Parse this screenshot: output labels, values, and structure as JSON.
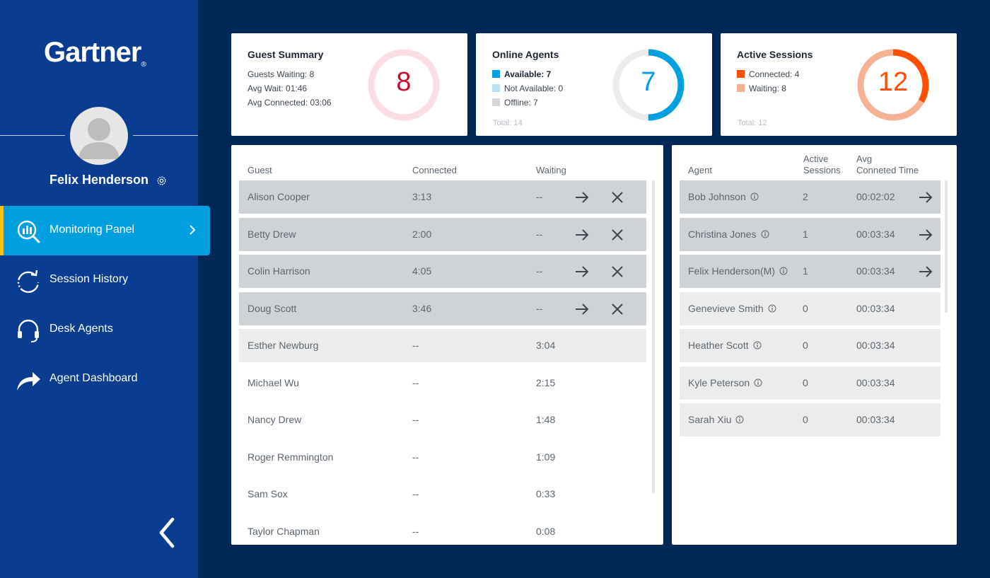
{
  "brand": {
    "logo_text": "Gartner",
    "logo_mark": "®"
  },
  "user": {
    "name": "Felix Henderson"
  },
  "nav": {
    "items": [
      {
        "label": "Monitoring Panel",
        "icon": "monitoring-chart-icon",
        "active": true
      },
      {
        "label": "Session History",
        "icon": "history-refresh-icon"
      },
      {
        "label": "Desk Agents",
        "icon": "headset-icon"
      },
      {
        "label": "Agent Dashboard",
        "icon": "share-arrow-icon"
      }
    ]
  },
  "guest_summary": {
    "title": "Guest Summary",
    "lines": [
      "Guests Waiting: 8",
      "Avg Wait: 01:46",
      "Avg Connected: 03:06"
    ],
    "ring_value": "8",
    "color": "#c8102e"
  },
  "online_agents": {
    "title": "Online Agents",
    "legend": [
      {
        "label": "Available: 7",
        "color": "#009fdf"
      },
      {
        "label": "Not Available: 0",
        "color": "#b9e3f5"
      },
      {
        "label": "Offline: 7",
        "color": "#d6d9dc"
      }
    ],
    "total": "Total: 14",
    "ring_value": "7",
    "available_fraction": 0.5
  },
  "active_sessions": {
    "title": "Active Sessions",
    "legend": [
      {
        "label": "Connected: 4",
        "color": "#fe5000"
      },
      {
        "label": "Waiting: 8",
        "color": "#f5b293"
      }
    ],
    "total": "Total: 12",
    "ring_value": "12",
    "connected_fraction": 0.333
  },
  "guests_table": {
    "headers": {
      "guest": "Guest",
      "connected": "Connected",
      "waiting": "Waiting"
    },
    "rows": [
      {
        "guest": "Alison Cooper",
        "connected": "3:13",
        "waiting": "--",
        "style": "dark",
        "actions": true
      },
      {
        "guest": "Betty Drew",
        "connected": "2:00",
        "waiting": "--",
        "style": "dark",
        "actions": true
      },
      {
        "guest": "Colin Harrison",
        "connected": "4:05",
        "waiting": "--",
        "style": "dark",
        "actions": true
      },
      {
        "guest": "Doug Scott",
        "connected": "3:46",
        "waiting": "--",
        "style": "dark",
        "actions": true
      },
      {
        "guest": "Esther Newburg",
        "connected": "--",
        "waiting": "3:04",
        "style": "light",
        "actions": false
      },
      {
        "guest": "Michael Wu",
        "connected": "--",
        "waiting": "2:15",
        "style": "none",
        "actions": false
      },
      {
        "guest": "Nancy Drew",
        "connected": "--",
        "waiting": "1:48",
        "style": "none",
        "actions": false
      },
      {
        "guest": "Roger Remmington",
        "connected": "--",
        "waiting": "1:09",
        "style": "none",
        "actions": false
      },
      {
        "guest": "Sam Sox",
        "connected": "--",
        "waiting": "0:33",
        "style": "none",
        "actions": false
      },
      {
        "guest": "Taylor Chapman",
        "connected": "--",
        "waiting": "0:08",
        "style": "none",
        "actions": false
      }
    ]
  },
  "agents_table": {
    "headers": {
      "agent": "Agent",
      "active_line1": "Active",
      "active_line2": "Sessions",
      "avg_line1": "Avg",
      "avg_line2": "Conneted Time"
    },
    "rows": [
      {
        "agent": "Bob Johnson",
        "sessions": "2",
        "avg": "00:02:02",
        "style": "dark",
        "action": true
      },
      {
        "agent": "Christina Jones",
        "sessions": "1",
        "avg": "00:03:34",
        "style": "dark",
        "action": true
      },
      {
        "agent": "Felix Henderson(M)",
        "sessions": "1",
        "avg": "00:03:34",
        "style": "dark",
        "action": true
      },
      {
        "agent": "Genevieve Smith",
        "sessions": "0",
        "avg": "00:03:34",
        "style": "light",
        "action": false
      },
      {
        "agent": "Heather Scott",
        "sessions": "0",
        "avg": "00:03:34",
        "style": "light",
        "action": false
      },
      {
        "agent": "Kyle Peterson",
        "sessions": "0",
        "avg": "00:03:34",
        "style": "light",
        "action": false
      },
      {
        "agent": "Sarah Xiu",
        "sessions": "0",
        "avg": "00:03:34",
        "style": "light",
        "action": false
      }
    ]
  }
}
